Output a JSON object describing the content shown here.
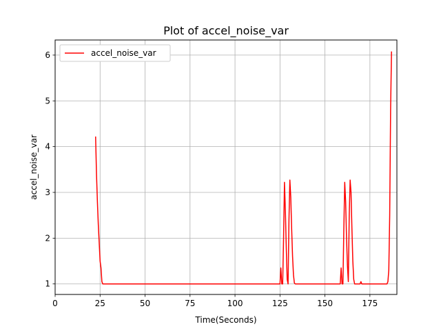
{
  "chart_data": {
    "type": "line",
    "title": "Plot of accel_noise_var",
    "xlabel": "Time(Seconds)",
    "ylabel": "accel_noise_var",
    "xlim": [
      0,
      190
    ],
    "ylim": [
      0.77,
      6.33
    ],
    "xticks": [
      0,
      25,
      50,
      75,
      100,
      125,
      150,
      175
    ],
    "yticks": [
      1,
      2,
      3,
      4,
      5,
      6
    ],
    "grid": true,
    "legend": {
      "position": "top-left",
      "entries": [
        "accel_noise_var"
      ]
    },
    "series": [
      {
        "name": "accel_noise_var",
        "color": "#ff0000",
        "x": [
          22.5,
          23.0,
          23.5,
          24.0,
          24.5,
          25.0,
          25.5,
          26.0,
          26.5,
          30,
          50,
          75,
          100,
          125.0,
          125.5,
          126.0,
          126.5,
          127.0,
          127.5,
          128.0,
          128.5,
          129.0,
          129.5,
          130.0,
          130.5,
          131.0,
          131.5,
          132.0,
          132.5,
          133.0,
          133.5,
          140,
          150,
          158.5,
          159.0,
          159.5,
          160.0,
          160.5,
          161.0,
          161.5,
          162.0,
          162.5,
          163.0,
          163.5,
          164.0,
          164.5,
          165.0,
          165.5,
          166.0,
          166.5,
          167.0,
          167.5,
          168.0,
          169.5,
          170.0,
          170.5,
          175,
          180,
          184.5,
          185.0,
          185.5,
          186.0,
          186.5,
          187.0
        ],
        "y": [
          4.22,
          3.4,
          2.8,
          2.3,
          1.9,
          1.5,
          1.35,
          1.05,
          1.0,
          1.0,
          1.0,
          1.0,
          1.0,
          1.0,
          1.35,
          1.0,
          1.0,
          2.0,
          3.22,
          2.6,
          1.8,
          1.1,
          1.0,
          2.4,
          3.27,
          2.9,
          2.2,
          1.6,
          1.2,
          1.02,
          1.0,
          1.0,
          1.0,
          1.0,
          1.35,
          1.0,
          1.0,
          2.2,
          3.22,
          2.8,
          2.0,
          1.4,
          1.05,
          2.5,
          3.27,
          3.0,
          2.2,
          1.5,
          1.1,
          1.0,
          1.0,
          1.0,
          1.0,
          1.0,
          1.05,
          1.0,
          1.0,
          1.0,
          1.0,
          1.05,
          1.3,
          2.5,
          4.8,
          6.08
        ]
      }
    ]
  }
}
